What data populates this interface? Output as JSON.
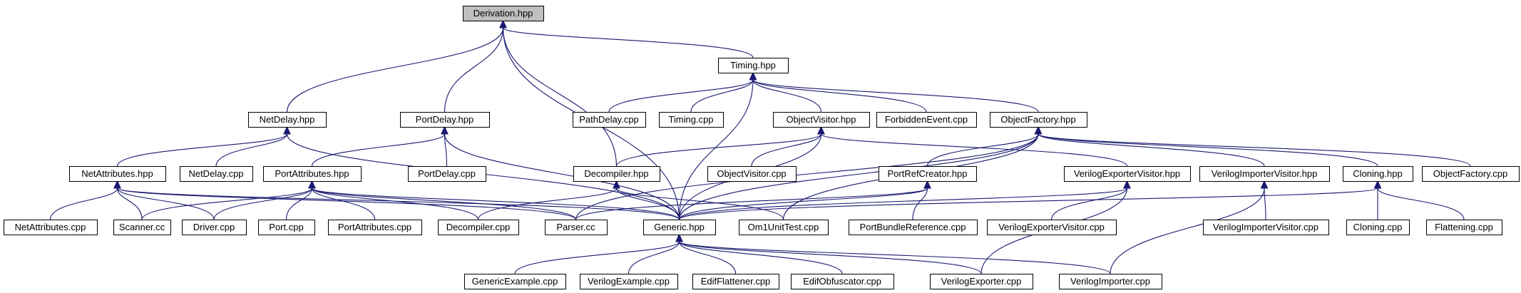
{
  "colors": {
    "edge": "#191970",
    "root_fill": "#bfbfbf",
    "node_fill": "#ffffff",
    "node_border": "#000000"
  },
  "nodes": [
    {
      "id": "derivation_hpp",
      "label": "Derivation.hpp",
      "root": true
    },
    {
      "id": "timing_hpp",
      "label": "Timing.hpp"
    },
    {
      "id": "netdelay_hpp",
      "label": "NetDelay.hpp"
    },
    {
      "id": "portdelay_hpp",
      "label": "PortDelay.hpp"
    },
    {
      "id": "pathdelay_cpp",
      "label": "PathDelay.cpp"
    },
    {
      "id": "timing_cpp",
      "label": "Timing.cpp"
    },
    {
      "id": "objectvisitor_hpp",
      "label": "ObjectVisitor.hpp"
    },
    {
      "id": "forbiddenevent_cpp",
      "label": "ForbiddenEvent.cpp"
    },
    {
      "id": "objectfactory_hpp",
      "label": "ObjectFactory.hpp"
    },
    {
      "id": "netattributes_hpp",
      "label": "NetAttributes.hpp"
    },
    {
      "id": "netdelay_cpp",
      "label": "NetDelay.cpp"
    },
    {
      "id": "portattributes_hpp",
      "label": "PortAttributes.hpp"
    },
    {
      "id": "portdelay_cpp",
      "label": "PortDelay.cpp"
    },
    {
      "id": "decompiler_hpp",
      "label": "Decompiler.hpp"
    },
    {
      "id": "objectvisitor_cpp",
      "label": "ObjectVisitor.cpp"
    },
    {
      "id": "portrefcreator_hpp",
      "label": "PortRefCreator.hpp"
    },
    {
      "id": "verilogexportervisitor_hpp",
      "label": "VerilogExporterVisitor.hpp"
    },
    {
      "id": "verilogimportervisitor_hpp",
      "label": "VerilogImporterVisitor.hpp"
    },
    {
      "id": "cloning_hpp",
      "label": "Cloning.hpp"
    },
    {
      "id": "objectfactory_cpp",
      "label": "ObjectFactory.cpp"
    },
    {
      "id": "netattributes_cpp",
      "label": "NetAttributes.cpp"
    },
    {
      "id": "scanner_cc",
      "label": "Scanner.cc"
    },
    {
      "id": "driver_cpp",
      "label": "Driver.cpp"
    },
    {
      "id": "port_cpp",
      "label": "Port.cpp"
    },
    {
      "id": "portattributes_cpp",
      "label": "PortAttributes.cpp"
    },
    {
      "id": "decompiler_cpp",
      "label": "Decompiler.cpp"
    },
    {
      "id": "parser_cc",
      "label": "Parser.cc"
    },
    {
      "id": "generic_hpp",
      "label": "Generic.hpp"
    },
    {
      "id": "om1unittest_cpp",
      "label": "Om1UnitTest.cpp"
    },
    {
      "id": "portbundlereference_cpp",
      "label": "PortBundleReference.cpp"
    },
    {
      "id": "verilogexportervisitor_cpp",
      "label": "VerilogExporterVisitor.cpp"
    },
    {
      "id": "verilogimportervisitor_cpp",
      "label": "VerilogImporterVisitor.cpp"
    },
    {
      "id": "cloning_cpp",
      "label": "Cloning.cpp"
    },
    {
      "id": "flattening_cpp",
      "label": "Flattening.cpp"
    },
    {
      "id": "genericexample_cpp",
      "label": "GenericExample.cpp"
    },
    {
      "id": "verilogexample_cpp",
      "label": "VerilogExample.cpp"
    },
    {
      "id": "ediflattener_cpp",
      "label": "EdifFlattener.cpp"
    },
    {
      "id": "edifobfuscator_cpp",
      "label": "EdifObfuscator.cpp"
    },
    {
      "id": "verilogexporter_cpp",
      "label": "VerilogExporter.cpp"
    },
    {
      "id": "verilogimporter_cpp",
      "label": "VerilogImporter.cpp"
    }
  ],
  "edges": [
    {
      "from": "derivation_hpp",
      "to": "timing_hpp"
    },
    {
      "from": "derivation_hpp",
      "to": "netdelay_hpp"
    },
    {
      "from": "derivation_hpp",
      "to": "portdelay_hpp"
    },
    {
      "from": "derivation_hpp",
      "to": "decompiler_hpp"
    },
    {
      "from": "derivation_hpp",
      "to": "generic_hpp"
    },
    {
      "from": "timing_hpp",
      "to": "pathdelay_cpp"
    },
    {
      "from": "timing_hpp",
      "to": "timing_cpp"
    },
    {
      "from": "timing_hpp",
      "to": "objectvisitor_hpp"
    },
    {
      "from": "timing_hpp",
      "to": "forbiddenevent_cpp"
    },
    {
      "from": "timing_hpp",
      "to": "objectfactory_hpp"
    },
    {
      "from": "timing_hpp",
      "to": "generic_hpp"
    },
    {
      "from": "netdelay_hpp",
      "to": "netattributes_hpp"
    },
    {
      "from": "netdelay_hpp",
      "to": "netdelay_cpp"
    },
    {
      "from": "netdelay_hpp",
      "to": "generic_hpp"
    },
    {
      "from": "portdelay_hpp",
      "to": "portattributes_hpp"
    },
    {
      "from": "portdelay_hpp",
      "to": "portdelay_cpp"
    },
    {
      "from": "portdelay_hpp",
      "to": "generic_hpp"
    },
    {
      "from": "objectvisitor_hpp",
      "to": "decompiler_hpp"
    },
    {
      "from": "objectvisitor_hpp",
      "to": "objectvisitor_cpp"
    },
    {
      "from": "objectvisitor_hpp",
      "to": "verilogexportervisitor_hpp"
    },
    {
      "from": "objectvisitor_hpp",
      "to": "generic_hpp"
    },
    {
      "from": "objectfactory_hpp",
      "to": "portrefcreator_hpp"
    },
    {
      "from": "objectfactory_hpp",
      "to": "verilogimportervisitor_hpp"
    },
    {
      "from": "objectfactory_hpp",
      "to": "cloning_hpp"
    },
    {
      "from": "objectfactory_hpp",
      "to": "objectfactory_cpp"
    },
    {
      "from": "objectfactory_hpp",
      "to": "parser_cc"
    },
    {
      "from": "objectfactory_hpp",
      "to": "generic_hpp"
    },
    {
      "from": "objectfactory_hpp",
      "to": "om1unittest_cpp"
    },
    {
      "from": "netattributes_hpp",
      "to": "netattributes_cpp"
    },
    {
      "from": "netattributes_hpp",
      "to": "scanner_cc"
    },
    {
      "from": "netattributes_hpp",
      "to": "driver_cpp"
    },
    {
      "from": "netattributes_hpp",
      "to": "parser_cc"
    },
    {
      "from": "netattributes_hpp",
      "to": "generic_hpp"
    },
    {
      "from": "portattributes_hpp",
      "to": "scanner_cc"
    },
    {
      "from": "portattributes_hpp",
      "to": "driver_cpp"
    },
    {
      "from": "portattributes_hpp",
      "to": "port_cpp"
    },
    {
      "from": "portattributes_hpp",
      "to": "portattributes_cpp"
    },
    {
      "from": "portattributes_hpp",
      "to": "decompiler_cpp"
    },
    {
      "from": "portattributes_hpp",
      "to": "parser_cc"
    },
    {
      "from": "portattributes_hpp",
      "to": "generic_hpp"
    },
    {
      "from": "decompiler_hpp",
      "to": "decompiler_cpp"
    },
    {
      "from": "decompiler_hpp",
      "to": "generic_hpp"
    },
    {
      "from": "decompiler_hpp",
      "to": "om1unittest_cpp"
    },
    {
      "from": "portrefcreator_hpp",
      "to": "parser_cc"
    },
    {
      "from": "portrefcreator_hpp",
      "to": "generic_hpp"
    },
    {
      "from": "portrefcreator_hpp",
      "to": "portbundlereference_cpp"
    },
    {
      "from": "verilogexportervisitor_hpp",
      "to": "generic_hpp"
    },
    {
      "from": "verilogexportervisitor_hpp",
      "to": "verilogexportervisitor_cpp"
    },
    {
      "from": "verilogexportervisitor_hpp",
      "to": "verilogexporter_cpp"
    },
    {
      "from": "verilogimportervisitor_hpp",
      "to": "verilogimportervisitor_cpp"
    },
    {
      "from": "verilogimportervisitor_hpp",
      "to": "verilogimporter_cpp"
    },
    {
      "from": "cloning_hpp",
      "to": "generic_hpp"
    },
    {
      "from": "cloning_hpp",
      "to": "cloning_cpp"
    },
    {
      "from": "cloning_hpp",
      "to": "flattening_cpp"
    },
    {
      "from": "generic_hpp",
      "to": "genericexample_cpp"
    },
    {
      "from": "generic_hpp",
      "to": "verilogexample_cpp"
    },
    {
      "from": "generic_hpp",
      "to": "ediflattener_cpp"
    },
    {
      "from": "generic_hpp",
      "to": "edifobfuscator_cpp"
    },
    {
      "from": "generic_hpp",
      "to": "verilogexporter_cpp"
    },
    {
      "from": "generic_hpp",
      "to": "verilogimporter_cpp"
    }
  ]
}
